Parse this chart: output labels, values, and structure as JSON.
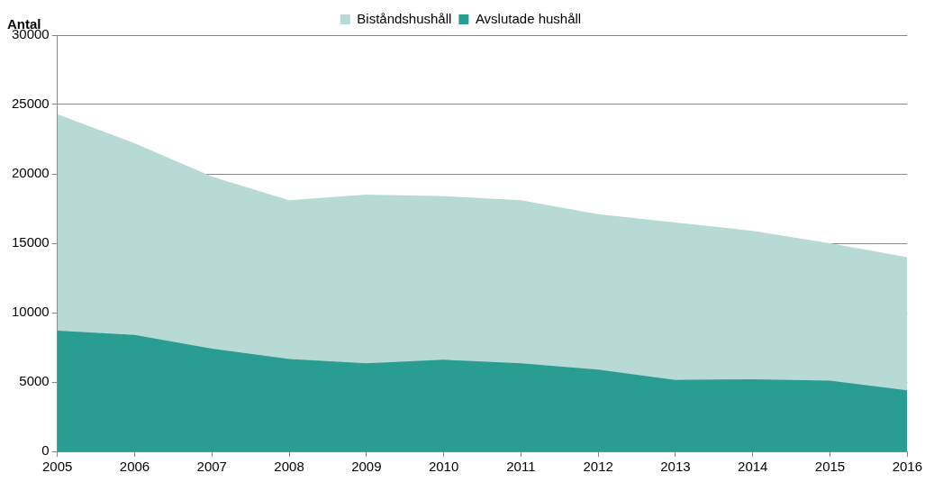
{
  "chart_data": {
    "type": "area",
    "ylabel": "Antal",
    "x": [
      2005,
      2006,
      2007,
      2008,
      2009,
      2010,
      2011,
      2012,
      2013,
      2014,
      2015,
      2016
    ],
    "series": [
      {
        "name": "Biståndshushåll",
        "color": "#b8dad5",
        "values": [
          24300,
          22200,
          19800,
          18100,
          18500,
          18400,
          18100,
          17100,
          16500,
          15900,
          15000,
          14000
        ]
      },
      {
        "name": "Avslutade hushåll",
        "color": "#2a9d92",
        "values": [
          8700,
          8400,
          7400,
          6650,
          6350,
          6600,
          6350,
          5900,
          5150,
          5200,
          5100,
          4400
        ]
      }
    ],
    "xlim": [
      2005,
      2016
    ],
    "xticks": [
      2005,
      2006,
      2007,
      2008,
      2009,
      2010,
      2011,
      2012,
      2013,
      2014,
      2015,
      2016
    ],
    "ylim": [
      0,
      30000
    ],
    "yticks": [
      0,
      5000,
      10000,
      15000,
      20000,
      25000,
      30000
    ],
    "grid": "y",
    "legend": "top"
  }
}
